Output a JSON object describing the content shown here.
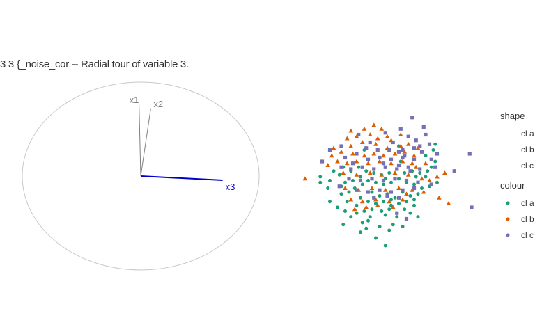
{
  "chart_data": {
    "type": "scatter",
    "title": "3 3 {_noise_cor -- Radial tour of variable 3.",
    "grid": false,
    "legend_position": "right",
    "axes_circle": {
      "axes": [
        {
          "label": "x1",
          "x": -0.02,
          "y": 0.86,
          "color": "#808080"
        },
        {
          "label": "x2",
          "x": 0.12,
          "y": 0.81,
          "color": "#808080"
        },
        {
          "label": "x3",
          "x": 0.98,
          "y": -0.05,
          "color": "#0000cc"
        }
      ]
    },
    "legend": {
      "shape_title": "shape",
      "colour_title": "colour",
      "entries": [
        {
          "label": "cl a",
          "shape": "circle",
          "color": "#1b9e77"
        },
        {
          "label": "cl b",
          "shape": "triangle",
          "color": "#d95f02"
        },
        {
          "label": "cl c",
          "shape": "square",
          "color": "#7570b3"
        }
      ]
    },
    "series": [
      {
        "legend_label": "cl a",
        "shape": "circle",
        "color": "#1b9e77",
        "points": [
          [
            0.15,
            -0.8
          ],
          [
            0.3,
            -0.55
          ],
          [
            -0.3,
            -0.95
          ],
          [
            0.45,
            -0.85
          ],
          [
            0.8,
            -0.75
          ],
          [
            1.0,
            -0.85
          ],
          [
            -0.6,
            -0.55
          ],
          [
            -1.1,
            -0.6
          ],
          [
            -1.3,
            -0.45
          ],
          [
            -1.55,
            0.2
          ],
          [
            -1.3,
            0.1
          ],
          [
            -0.9,
            0.05
          ],
          [
            -0.7,
            0.1
          ],
          [
            -0.5,
            0.2
          ],
          [
            -0.3,
            0.1
          ],
          [
            -0.1,
            0.05
          ],
          [
            0.1,
            0.0
          ],
          [
            0.3,
            0.05
          ],
          [
            0.5,
            0.15
          ],
          [
            0.7,
            0.05
          ],
          [
            0.9,
            0.0
          ],
          [
            1.1,
            -0.1
          ],
          [
            1.3,
            -0.05
          ],
          [
            1.5,
            0.05
          ],
          [
            1.35,
            0.45
          ],
          [
            1.45,
            0.6
          ],
          [
            1.2,
            0.75
          ],
          [
            1.45,
            1.05
          ],
          [
            1.4,
            0.9
          ],
          [
            0.5,
            1.0
          ],
          [
            -0.4,
            0.9
          ],
          [
            -0.2,
            -0.2
          ],
          [
            0.0,
            -0.3
          ],
          [
            0.2,
            -0.25
          ],
          [
            0.4,
            -0.35
          ],
          [
            0.6,
            -0.2
          ],
          [
            0.8,
            -0.3
          ],
          [
            1.0,
            -0.25
          ],
          [
            -0.8,
            -0.2
          ],
          [
            -1.0,
            -0.25
          ],
          [
            -0.5,
            -0.35
          ],
          [
            -0.3,
            -0.45
          ],
          [
            -0.1,
            -0.5
          ],
          [
            0.1,
            -0.45
          ],
          [
            0.3,
            -0.4
          ],
          [
            0.5,
            -0.5
          ],
          [
            0.7,
            -0.45
          ],
          [
            0.9,
            -0.4
          ],
          [
            -0.75,
            -0.85
          ],
          [
            -0.9,
            -0.7
          ],
          [
            -0.6,
            -0.75
          ],
          [
            -0.4,
            -0.7
          ],
          [
            -0.2,
            -0.65
          ],
          [
            0.05,
            -0.7
          ],
          [
            0.25,
            -0.65
          ],
          [
            -0.45,
            -1.0
          ],
          [
            0.0,
            -1.1
          ],
          [
            0.35,
            -1.05
          ],
          [
            0.6,
            -1.1
          ],
          [
            -0.5,
            -1.25
          ],
          [
            -0.35,
            -1.15
          ],
          [
            0.25,
            -1.2
          ],
          [
            -0.1,
            -1.4
          ],
          [
            0.15,
            -1.6
          ],
          [
            0.9,
            -0.55
          ],
          [
            -1.05,
            0.25
          ],
          [
            -1.2,
            0.35
          ],
          [
            -0.95,
            0.45
          ],
          [
            -0.75,
            0.35
          ],
          [
            -0.55,
            0.45
          ],
          [
            -0.35,
            0.35
          ],
          [
            -0.15,
            0.3
          ],
          [
            0.05,
            0.25
          ],
          [
            0.25,
            0.3
          ],
          [
            0.45,
            0.4
          ],
          [
            0.65,
            0.3
          ],
          [
            0.85,
            0.35
          ],
          [
            1.05,
            0.3
          ],
          [
            -1.0,
            -0.05
          ],
          [
            -0.65,
            -0.1
          ],
          [
            -0.45,
            0.0
          ],
          [
            0.15,
            0.15
          ],
          [
            0.95,
            0.2
          ],
          [
            1.2,
            0.2
          ],
          [
            -1.55,
            0.05
          ],
          [
            -1.35,
            -0.1
          ],
          [
            -0.85,
            -0.45
          ],
          [
            -0.25,
            -0.85
          ],
          [
            0.65,
            -0.65
          ],
          [
            1.25,
            0.35
          ],
          [
            0.55,
            0.6
          ],
          [
            -0.95,
            -1.05
          ]
        ]
      },
      {
        "legend_label": "cl b",
        "shape": "triangle",
        "color": "#d95f02",
        "points": [
          [
            -1.95,
            0.15
          ],
          [
            1.55,
            -0.35
          ],
          [
            1.8,
            -0.5
          ],
          [
            1.7,
            0.3
          ],
          [
            1.5,
            0.2
          ],
          [
            -0.75,
            1.4
          ],
          [
            -0.45,
            1.1
          ],
          [
            -0.1,
            1.05
          ],
          [
            0.3,
            1.15
          ],
          [
            0.55,
            1.0
          ],
          [
            0.75,
            1.05
          ],
          [
            1.0,
            0.95
          ],
          [
            -0.85,
            1.2
          ],
          [
            -0.6,
            1.25
          ],
          [
            -0.25,
            1.3
          ],
          [
            -0.05,
            1.2
          ],
          [
            0.2,
            1.25
          ],
          [
            -1.2,
            0.95
          ],
          [
            -1.0,
            0.85
          ],
          [
            -0.7,
            0.8
          ],
          [
            -0.4,
            0.75
          ],
          [
            -0.15,
            0.8
          ],
          [
            0.1,
            0.75
          ],
          [
            0.4,
            0.8
          ],
          [
            0.65,
            0.85
          ],
          [
            0.9,
            0.75
          ],
          [
            -1.1,
            0.6
          ],
          [
            -0.85,
            0.55
          ],
          [
            -0.6,
            0.6
          ],
          [
            -0.3,
            0.55
          ],
          [
            0.0,
            0.6
          ],
          [
            0.3,
            0.55
          ],
          [
            0.6,
            0.6
          ],
          [
            0.85,
            0.55
          ],
          [
            -1.25,
            0.75
          ],
          [
            -0.95,
            0.3
          ],
          [
            -0.6,
            0.25
          ],
          [
            -0.25,
            0.3
          ],
          [
            0.05,
            0.25
          ],
          [
            0.4,
            0.3
          ],
          [
            0.75,
            0.25
          ],
          [
            1.1,
            0.15
          ],
          [
            1.3,
            0.1
          ],
          [
            -0.9,
            -0.1
          ],
          [
            -0.55,
            -0.15
          ],
          [
            -0.2,
            -0.1
          ],
          [
            0.15,
            -0.15
          ],
          [
            0.5,
            -0.1
          ],
          [
            0.85,
            -0.15
          ],
          [
            1.15,
            -0.2
          ],
          [
            -0.75,
            -0.4
          ],
          [
            -0.45,
            -0.45
          ],
          [
            -0.1,
            -0.4
          ],
          [
            0.25,
            -0.45
          ],
          [
            0.6,
            -0.4
          ],
          [
            -0.65,
            -0.65
          ],
          [
            -0.35,
            -0.6
          ],
          [
            -0.05,
            -0.55
          ],
          [
            0.35,
            -0.6
          ],
          [
            -0.4,
            1.45
          ],
          [
            0.05,
            1.45
          ],
          [
            0.55,
            1.3
          ],
          [
            -0.15,
            1.55
          ],
          [
            -1.35,
            0.5
          ],
          [
            1.2,
            0.55
          ],
          [
            0.7,
            -0.25
          ],
          [
            0.2,
            0.95
          ],
          [
            -0.75,
            1.0
          ],
          [
            0.95,
            0.45
          ]
        ]
      },
      {
        "legend_label": "cl c",
        "shape": "square",
        "color": "#7570b3",
        "points": [
          [
            2.35,
            0.8
          ],
          [
            2.4,
            -0.6
          ],
          [
            1.95,
            0.35
          ],
          [
            1.5,
            0.8
          ],
          [
            1.35,
            0.65
          ],
          [
            0.85,
            1.75
          ],
          [
            1.15,
            1.5
          ],
          [
            0.55,
            1.45
          ],
          [
            0.95,
            1.15
          ],
          [
            0.6,
            0.9
          ],
          [
            1.1,
            0.85
          ],
          [
            0.65,
            0.75
          ],
          [
            -1.5,
            0.6
          ],
          [
            -0.9,
            0.7
          ],
          [
            -0.6,
            0.8
          ],
          [
            -0.3,
            0.65
          ],
          [
            0.0,
            0.7
          ],
          [
            0.3,
            0.65
          ],
          [
            0.6,
            0.7
          ],
          [
            0.9,
            0.65
          ],
          [
            -1.0,
            0.45
          ],
          [
            -0.75,
            0.4
          ],
          [
            -0.45,
            0.45
          ],
          [
            -0.15,
            0.4
          ],
          [
            0.15,
            0.45
          ],
          [
            0.45,
            0.4
          ],
          [
            0.75,
            0.45
          ],
          [
            1.05,
            0.4
          ],
          [
            -0.8,
            0.15
          ],
          [
            -0.5,
            0.1
          ],
          [
            -0.2,
            0.15
          ],
          [
            0.1,
            0.1
          ],
          [
            0.4,
            0.15
          ],
          [
            0.7,
            0.1
          ],
          [
            1.0,
            0.05
          ],
          [
            -0.6,
            -0.15
          ],
          [
            -0.3,
            -0.2
          ],
          [
            0.0,
            -0.15
          ],
          [
            0.3,
            -0.2
          ],
          [
            0.6,
            -0.15
          ],
          [
            0.9,
            -0.1
          ],
          [
            -0.15,
            -0.35
          ],
          [
            0.2,
            -0.3
          ],
          [
            0.5,
            -0.35
          ],
          [
            -1.3,
            0.9
          ],
          [
            -1.0,
            1.0
          ],
          [
            -0.35,
            0.95
          ],
          [
            -0.05,
            0.9
          ],
          [
            0.25,
            0.9
          ],
          [
            0.5,
            0.85
          ],
          [
            -0.55,
            1.3
          ],
          [
            0.15,
            1.35
          ],
          [
            1.2,
            1.3
          ],
          [
            1.05,
            1.0
          ],
          [
            0.75,
            1.25
          ],
          [
            1.3,
            1.05
          ],
          [
            1.45,
            0.45
          ],
          [
            0.45,
            -0.75
          ],
          [
            0.7,
            -0.9
          ],
          [
            -1.05,
            -0.05
          ],
          [
            1.35,
            0.0
          ],
          [
            0.8,
            0.35
          ],
          [
            0.35,
            1.1
          ],
          [
            -0.25,
            1.1
          ],
          [
            0.9,
            0.95
          ],
          [
            0.1,
            0.55
          ],
          [
            0.5,
            0.5
          ],
          [
            -0.7,
            0.55
          ]
        ]
      }
    ]
  }
}
